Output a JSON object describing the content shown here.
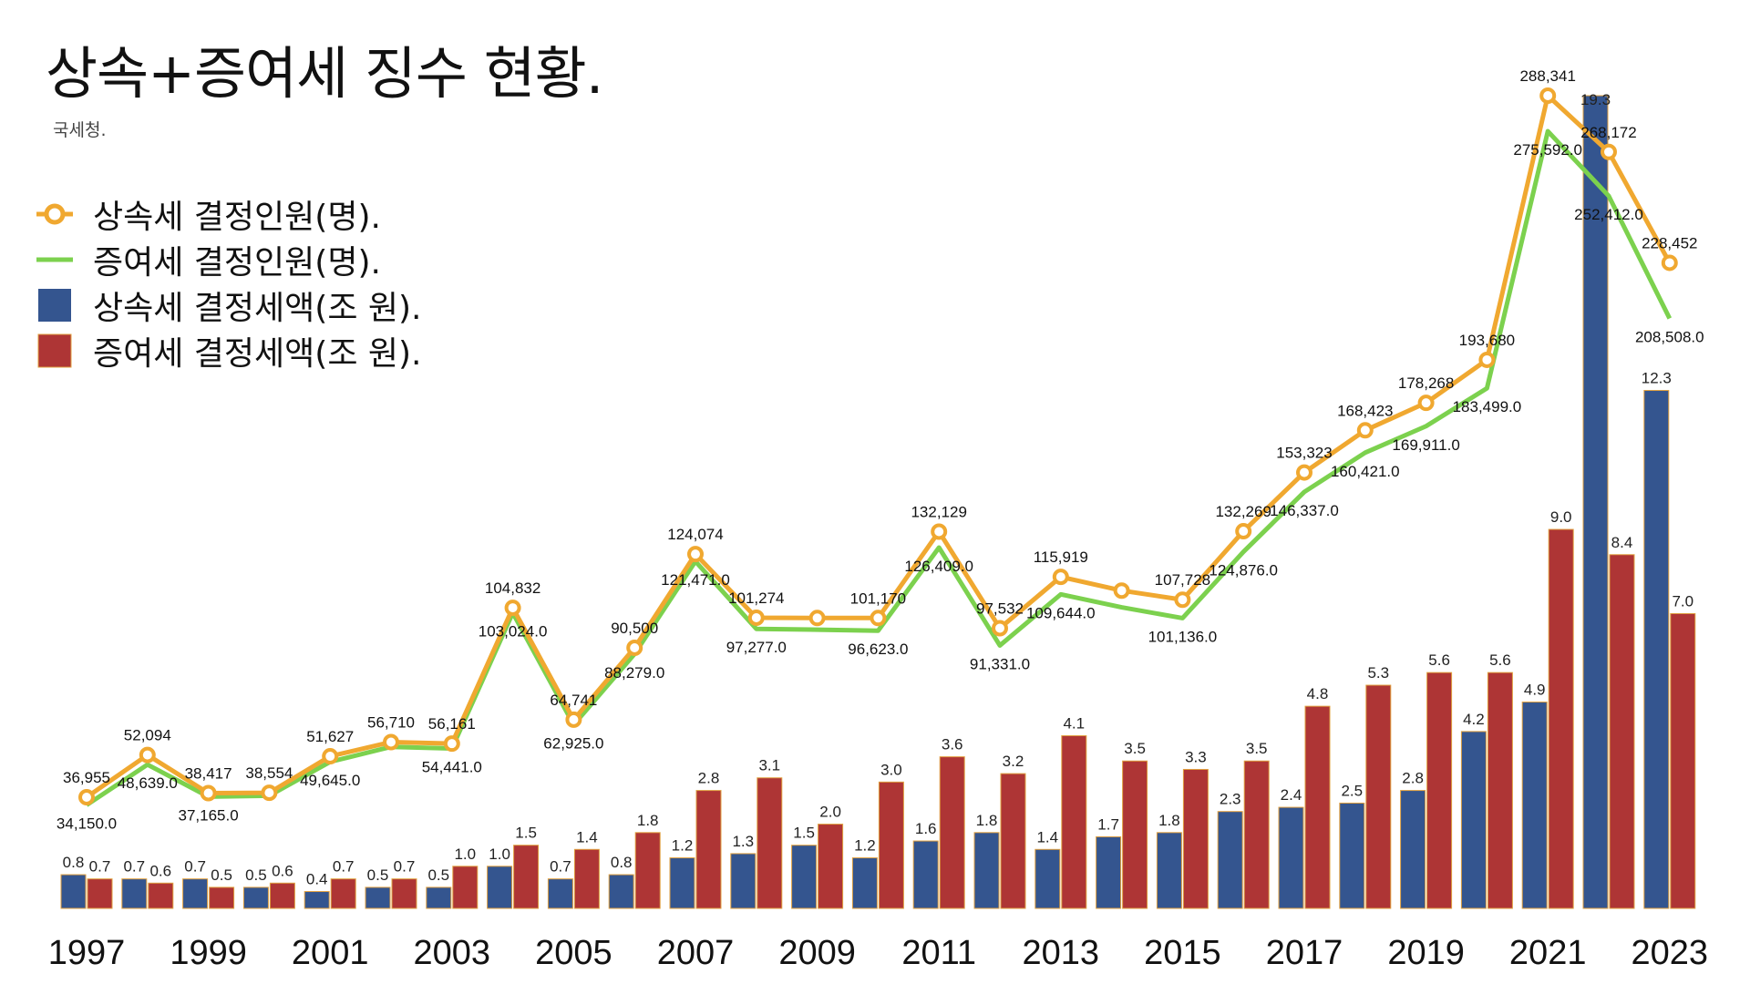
{
  "title": "상속+증여세 징수 현황.",
  "subtitle": "국세청.",
  "legend": [
    {
      "label": "상속세 결정인원(명).",
      "icon": "orange-circle-line-icon",
      "color": "#F0A830"
    },
    {
      "label": "증여세 결정인원(명).",
      "icon": "green-line-icon",
      "color": "#7CD14E"
    },
    {
      "label": "상속세 결정세액(조 원).",
      "icon": "blue-square-icon",
      "color": "#34558F"
    },
    {
      "label": "증여세 결정세액(조 원).",
      "icon": "red-square-icon",
      "color": "#AE3535"
    }
  ],
  "chart_data": {
    "type": "bar",
    "title": "상속+증여세 징수 현황.",
    "subtitle": "국세청.",
    "x": [
      1997,
      1998,
      1999,
      2000,
      2001,
      2002,
      2003,
      2004,
      2005,
      2006,
      2007,
      2008,
      2009,
      2010,
      2011,
      2012,
      2013,
      2014,
      2015,
      2016,
      2017,
      2018,
      2019,
      2020,
      2021,
      2022,
      2023
    ],
    "x_tick_labels": [
      "1997",
      "1999",
      "2001",
      "2003",
      "2005",
      "2007",
      "2009",
      "2011",
      "2013",
      "2015",
      "2017",
      "2019",
      "2021",
      "2023"
    ],
    "grid": false,
    "legend_position": "top-left",
    "series": [
      {
        "name": "상속세 결정세액(조 원).",
        "type": "bar",
        "axis": "left",
        "color": "#34558F",
        "values": [
          0.8,
          0.7,
          0.7,
          0.5,
          0.4,
          0.5,
          0.5,
          1.0,
          0.7,
          0.8,
          1.2,
          1.3,
          1.5,
          1.2,
          1.6,
          1.8,
          1.4,
          1.7,
          1.8,
          2.3,
          2.4,
          2.5,
          2.8,
          4.2,
          4.9,
          19.3,
          12.3
        ],
        "labels": [
          "0.8",
          "0.7",
          "0.7",
          "0.5",
          "0.4",
          "0.5",
          "0.5",
          "1.0",
          "0.7",
          "0.8",
          "1.2",
          "1.3",
          "1.5",
          "1.2",
          "1.6",
          "1.8",
          "1.4",
          "1.7",
          "1.8",
          "2.3",
          "2.4",
          "2.5",
          "2.8",
          "4.2",
          "4.9",
          "19.3",
          "12.3"
        ]
      },
      {
        "name": "증여세 결정세액(조 원).",
        "type": "bar",
        "axis": "left",
        "color": "#AE3535",
        "values": [
          0.7,
          0.6,
          0.5,
          0.6,
          0.7,
          0.7,
          1.0,
          1.5,
          1.4,
          1.8,
          2.8,
          3.1,
          2.0,
          3.0,
          3.6,
          3.2,
          4.1,
          3.5,
          3.3,
          3.5,
          4.8,
          5.3,
          5.6,
          5.6,
          9.0,
          8.4,
          7.0
        ],
        "labels": [
          "0.7",
          "0.6",
          "0.5",
          "0.6",
          "0.7",
          "0.7",
          "1.0",
          "1.5",
          "1.4",
          "1.8",
          "2.8",
          "3.1",
          "2.0",
          "3.0",
          "3.6",
          "3.2",
          "4.1",
          "3.5",
          "3.3",
          "3.5",
          "4.8",
          "5.3",
          "5.6",
          "5.6",
          "9.0",
          "8.4",
          "7.0"
        ]
      },
      {
        "name": "상속세 결정인원(명).",
        "type": "line",
        "axis": "right",
        "color": "#F0A830",
        "markers": true,
        "values": [
          36955,
          52094,
          38417,
          38554,
          51627,
          56710,
          56161,
          104832,
          64741,
          90500,
          124074,
          101274,
          101170,
          101170,
          132129,
          97532,
          115919,
          111000,
          107728,
          132269,
          153323,
          168423,
          178268,
          193680,
          288341,
          268172,
          228452
        ],
        "labels": [
          "36,955",
          "52,094",
          "38,417",
          "38,554",
          "51,627",
          "56,710",
          "56,161",
          "104,832",
          "64,741",
          "90,500",
          "124,074",
          "101,274",
          "",
          "101,170",
          "132,129",
          "97,532",
          "115,919",
          "",
          "107,728",
          "132,269",
          "153,323",
          "168,423",
          "178,268",
          "193,680",
          "288,341",
          "268,172",
          "228,452"
        ]
      },
      {
        "name": "증여세 결정인원(명).",
        "type": "line",
        "axis": "right",
        "color": "#7CD14E",
        "markers": false,
        "values": [
          34150,
          48639,
          37165,
          37500,
          49645,
          55000,
          54441,
          103024,
          62925,
          88279,
          121471,
          97277,
          97000,
          96623,
          126409,
          91331,
          109644,
          105000,
          101136,
          124876,
          146337,
          160421,
          169911,
          183499,
          275592,
          252412,
          208508
        ],
        "labels": [
          "34,150.0",
          "48,639.0",
          "37,165.0",
          "",
          "49,645.0",
          "",
          "54,441.0",
          "103,024.0",
          "62,925.0",
          "88,279.0",
          "121,471.0",
          "97,277.0",
          "",
          "96,623.0",
          "126,409.0",
          "91,331.0",
          "109,644.0",
          "",
          "101,136.0",
          "124,876.0",
          "146,337.0",
          "160,421.0",
          "169,911.0",
          "183,499.0",
          "275,592.0",
          "252,412.0",
          "208,508.0"
        ]
      }
    ],
    "ylim_left": [
      0,
      19.3
    ],
    "ylim_right": [
      0,
      288341
    ]
  }
}
